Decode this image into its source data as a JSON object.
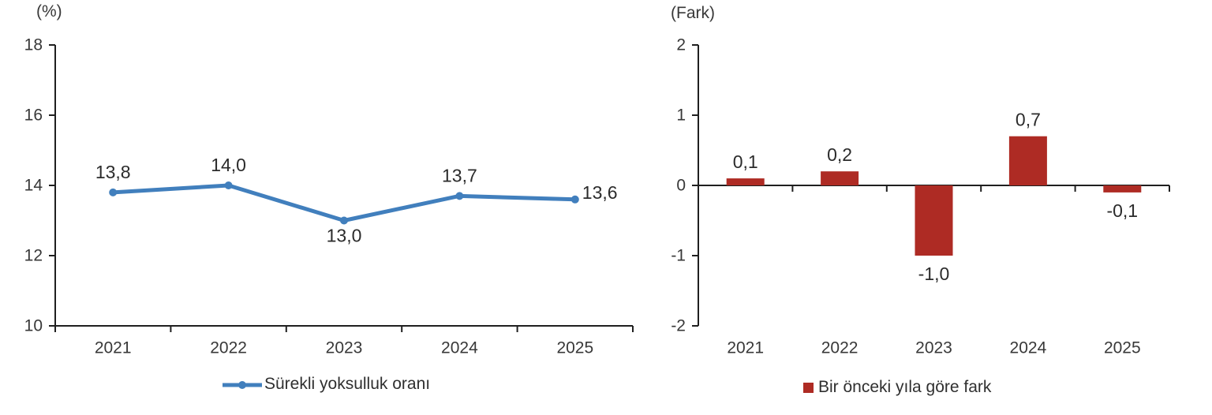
{
  "colors": {
    "line_series": "#417FBD",
    "bar_series": "#AE2B24",
    "axis": "#1f1f1f",
    "text": "#383838"
  },
  "chart_data": [
    {
      "type": "line",
      "title": "",
      "axis_unit_label": "(%)",
      "categories": [
        "2021",
        "2022",
        "2023",
        "2024",
        "2025"
      ],
      "series": [
        {
          "name": "Sürekli yoksulluk oranı",
          "values": [
            13.8,
            14.0,
            13.0,
            13.7,
            13.6
          ]
        }
      ],
      "value_labels": [
        "13,8",
        "14,0",
        "13,0",
        "13,7",
        "13,6"
      ],
      "label_positions": [
        "above",
        "above",
        "below",
        "above",
        "right"
      ],
      "ylim": [
        10,
        18
      ],
      "yticks": [
        18,
        16,
        14,
        12,
        10
      ],
      "ytick_labels": [
        "18",
        "16",
        "14",
        "12",
        "10"
      ],
      "xlabel": "",
      "ylabel": "",
      "grid": false,
      "legend": "Sürekli yoksulluk oranı",
      "legend_position": "bottom",
      "line_color": "#417FBD"
    },
    {
      "type": "bar",
      "title": "",
      "axis_unit_label": "(Fark)",
      "categories": [
        "2021",
        "2022",
        "2023",
        "2024",
        "2025"
      ],
      "series": [
        {
          "name": "Bir önceki yıla göre fark",
          "values": [
            0.1,
            0.2,
            -1.0,
            0.7,
            -0.1
          ]
        }
      ],
      "value_labels": [
        "0,1",
        "0,2",
        "-1,0",
        "0,7",
        "-0,1"
      ],
      "ylim": [
        -2,
        2
      ],
      "yticks": [
        2,
        1,
        0,
        -1,
        -2
      ],
      "ytick_labels": [
        "2",
        "1",
        "0",
        "-1",
        "-2"
      ],
      "xlabel": "",
      "ylabel": "",
      "grid": false,
      "legend": "Bir önceki yıla göre fark",
      "legend_position": "bottom",
      "bar_color": "#AE2B24"
    }
  ]
}
